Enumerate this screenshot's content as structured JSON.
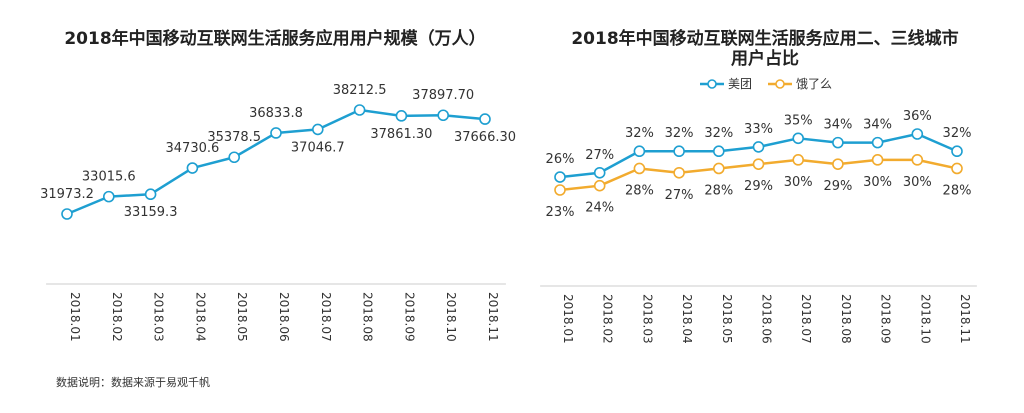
{
  "chart_data": [
    {
      "type": "line",
      "title": "2018年中国移动互联网生活服务应用用户规模（万人）",
      "categories": [
        "2018.01",
        "2018.02",
        "2018.03",
        "2018.04",
        "2018.05",
        "2018.06",
        "2018.07",
        "2018.08",
        "2018.09",
        "2018.10",
        "2018.11"
      ],
      "series": [
        {
          "values": [
            31973.2,
            33015.6,
            33159.3,
            34730.6,
            35378.5,
            36833.8,
            37046.7,
            38212.5,
            37861.3,
            37897.7,
            37666.3
          ],
          "labels": [
            "31973.2",
            "33015.6",
            "33159.3",
            "34730.6",
            "35378.5",
            "36833.8",
            "37046.7",
            "38212.5",
            "37861.30",
            "37897.70",
            "37666.30"
          ],
          "color": "#1e9fd1"
        }
      ],
      "legend": "none",
      "grid": false
    },
    {
      "type": "line",
      "title": "2018年中国移动互联网生活服务应用二、三线城市用户占比",
      "categories": [
        "2018.01",
        "2018.02",
        "2018.03",
        "2018.04",
        "2018.05",
        "2018.06",
        "2018.07",
        "2018.08",
        "2018.09",
        "2018.10",
        "2018.11"
      ],
      "series": [
        {
          "name": "美团",
          "values": [
            26,
            27,
            32,
            32,
            32,
            33,
            35,
            34,
            34,
            36,
            32
          ],
          "labels": [
            "26%",
            "27%",
            "32%",
            "32%",
            "32%",
            "33%",
            "35%",
            "34%",
            "34%",
            "36%",
            "32%"
          ],
          "color": "#1e9fd1"
        },
        {
          "name": "饿了么",
          "values": [
            23,
            24,
            28,
            27,
            28,
            29,
            30,
            29,
            30,
            30,
            28
          ],
          "labels": [
            "23%",
            "24%",
            "28%",
            "27%",
            "28%",
            "29%",
            "30%",
            "29%",
            "30%",
            "30%",
            "28%"
          ],
          "color": "#f2ab2e"
        }
      ],
      "legend": "top-center",
      "grid": false
    }
  ],
  "footnote": "数据说明：数据来源于易观千帆"
}
